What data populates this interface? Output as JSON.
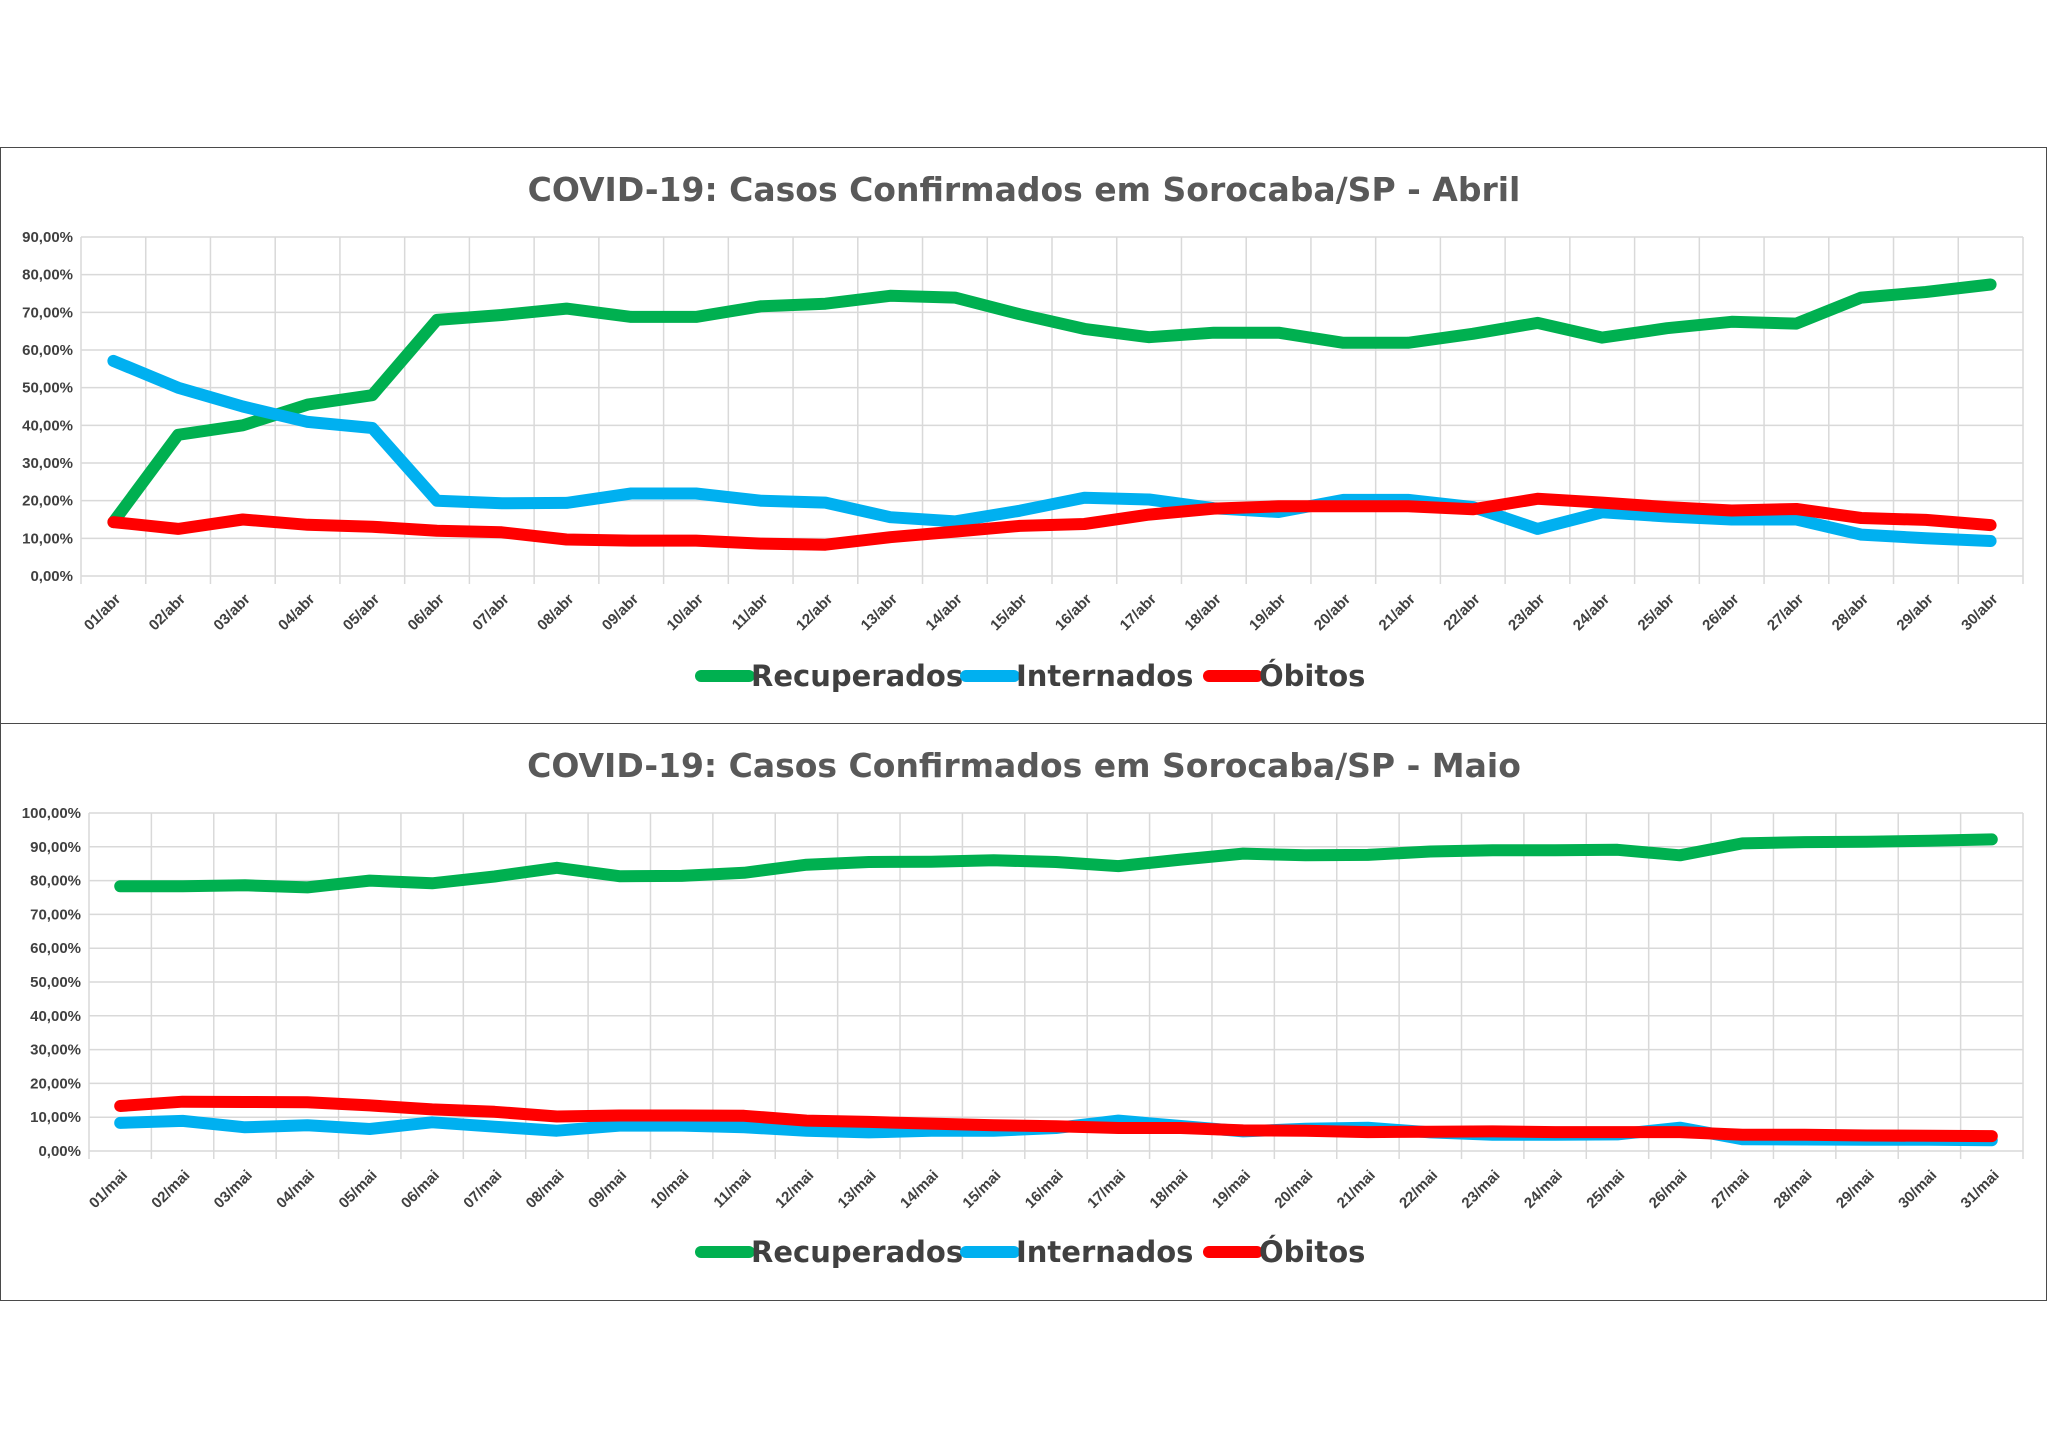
{
  "colors": {
    "recuperados": "#00b050",
    "internados": "#00b0f0",
    "obitos": "#ff0000"
  },
  "chart_data": [
    {
      "type": "line",
      "title": "COVID-19: Casos Confirmados em Sorocaba/SP - Abril",
      "xlabel": "",
      "ylabel": "",
      "ylim": [
        0,
        90
      ],
      "y_ticks": [
        "0,00%",
        "10,00%",
        "20,00%",
        "30,00%",
        "40,00%",
        "50,00%",
        "60,00%",
        "70,00%",
        "80,00%",
        "90,00%"
      ],
      "grid": true,
      "legend_position": "bottom",
      "categories": [
        "01/abr",
        "02/abr",
        "03/abr",
        "04/abr",
        "05/abr",
        "06/abr",
        "07/abr",
        "08/abr",
        "09/abr",
        "10/abr",
        "11/abr",
        "12/abr",
        "13/abr",
        "14/abr",
        "15/abr",
        "16/abr",
        "17/abr",
        "18/abr",
        "19/abr",
        "20/abr",
        "21/abr",
        "22/abr",
        "23/abr",
        "24/abr",
        "25/abr",
        "26/abr",
        "27/abr",
        "28/abr",
        "29/abr",
        "30/abr"
      ],
      "series": [
        {
          "name": "Recuperados",
          "color_key": "recuperados",
          "values": [
            14.3,
            37.5,
            40.0,
            45.5,
            48.0,
            68.0,
            69.3,
            71.0,
            68.8,
            68.8,
            71.6,
            72.3,
            74.4,
            73.9,
            69.5,
            65.6,
            63.4,
            64.6,
            64.6,
            61.9,
            61.9,
            64.3,
            67.2,
            63.3,
            65.8,
            67.5,
            67.0,
            73.9,
            75.4,
            77.4
          ]
        },
        {
          "name": "Internados",
          "color_key": "internados",
          "values": [
            57.1,
            50.0,
            45.0,
            40.9,
            39.3,
            20.0,
            19.3,
            19.4,
            21.9,
            21.9,
            20.0,
            19.5,
            15.6,
            14.5,
            17.3,
            20.8,
            20.3,
            18.0,
            17.0,
            20.2,
            20.2,
            18.3,
            12.5,
            16.9,
            15.8,
            15.0,
            15.0,
            11.0,
            10.0,
            9.3
          ]
        },
        {
          "name": "Óbitos",
          "color_key": "obitos",
          "values": [
            14.3,
            12.5,
            15.0,
            13.6,
            13.1,
            12.0,
            11.6,
            9.7,
            9.4,
            9.4,
            8.6,
            8.3,
            10.3,
            11.8,
            13.3,
            13.8,
            16.3,
            17.9,
            18.5,
            18.5,
            18.5,
            17.7,
            20.5,
            19.5,
            18.3,
            17.4,
            17.8,
            15.4,
            14.9,
            13.5
          ]
        }
      ]
    },
    {
      "type": "line",
      "title": "COVID-19: Casos Confirmados em Sorocaba/SP - Maio",
      "xlabel": "",
      "ylabel": "",
      "ylim": [
        0,
        100
      ],
      "y_ticks": [
        "0,00%",
        "10,00%",
        "20,00%",
        "30,00%",
        "40,00%",
        "50,00%",
        "60,00%",
        "70,00%",
        "80,00%",
        "90,00%",
        "100,00%"
      ],
      "grid": true,
      "legend_position": "bottom",
      "categories": [
        "01/mai",
        "02/mai",
        "03/mai",
        "04/mai",
        "05/mai",
        "06/mai",
        "07/mai",
        "08/mai",
        "09/mai",
        "10/mai",
        "11/mai",
        "12/mai",
        "13/mai",
        "14/mai",
        "15/mai",
        "16/mai",
        "17/mai",
        "18/mai",
        "19/mai",
        "20/mai",
        "21/mai",
        "22/mai",
        "23/mai",
        "24/mai",
        "25/mai",
        "26/mai",
        "27/mai",
        "28/mai",
        "29/mai",
        "30/mai",
        "31/mai"
      ],
      "series": [
        {
          "name": "Recuperados",
          "color_key": "recuperados",
          "values": [
            78.3,
            78.3,
            78.6,
            78.0,
            80.0,
            79.2,
            81.2,
            83.8,
            81.3,
            81.4,
            82.3,
            84.7,
            85.5,
            85.6,
            86.0,
            85.5,
            84.3,
            86.2,
            88.0,
            87.5,
            87.6,
            88.6,
            89.0,
            89.0,
            89.1,
            87.5,
            91.0,
            91.4,
            91.5,
            91.8,
            92.2
          ]
        },
        {
          "name": "Internados",
          "color_key": "internados",
          "values": [
            8.3,
            8.9,
            7.0,
            7.6,
            6.5,
            8.5,
            7.2,
            6.0,
            7.5,
            7.5,
            7.0,
            6.0,
            5.5,
            6.0,
            6.0,
            6.8,
            9.0,
            7.4,
            5.8,
            6.6,
            6.9,
            5.5,
            4.8,
            4.8,
            4.9,
            6.9,
            3.5,
            3.4,
            3.3,
            3.3,
            3.2
          ]
        },
        {
          "name": "Óbitos",
          "color_key": "obitos",
          "values": [
            13.3,
            14.6,
            14.5,
            14.4,
            13.5,
            12.3,
            11.6,
            10.2,
            10.5,
            10.5,
            10.4,
            9.0,
            8.6,
            8.1,
            7.6,
            7.3,
            6.8,
            6.8,
            6.1,
            6.0,
            5.6,
            5.7,
            5.8,
            5.6,
            5.6,
            5.6,
            4.8,
            4.8,
            4.6,
            4.5,
            4.4
          ]
        }
      ]
    }
  ]
}
